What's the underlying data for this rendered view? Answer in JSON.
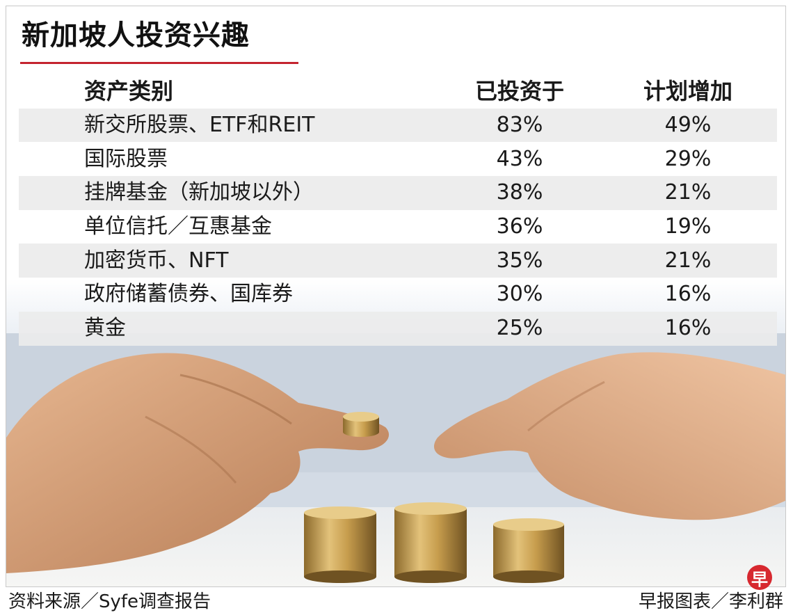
{
  "title": "新加坡人投资兴趣",
  "chart_data": {
    "type": "table",
    "columns": [
      "资产类别",
      "已投资于",
      "计划增加"
    ],
    "rows": [
      {
        "category": "新交所股票、ETF和REIT",
        "invested": "83%",
        "planned": "49%"
      },
      {
        "category": "国际股票",
        "invested": "43%",
        "planned": "29%"
      },
      {
        "category": "挂牌基金（新加坡以外）",
        "invested": "38%",
        "planned": "21%"
      },
      {
        "category": "单位信托／互惠基金",
        "invested": "36%",
        "planned": "19%"
      },
      {
        "category": "加密货币、NFT",
        "invested": "35%",
        "planned": "21%"
      },
      {
        "category": "政府储蓄债券、国库券",
        "invested": "30%",
        "planned": "16%"
      },
      {
        "category": "黄金",
        "invested": "25%",
        "planned": "16%"
      }
    ]
  },
  "footer": {
    "source": "资料来源／Syfe调查报告",
    "credit": "早报图表／李利群",
    "logo_text": "早"
  },
  "colors": {
    "title_rule": "#c4242f",
    "row_shade": "#ececec",
    "logo": "#d7282f"
  },
  "image": {
    "icon": "hands-stacking-coins-photo"
  }
}
